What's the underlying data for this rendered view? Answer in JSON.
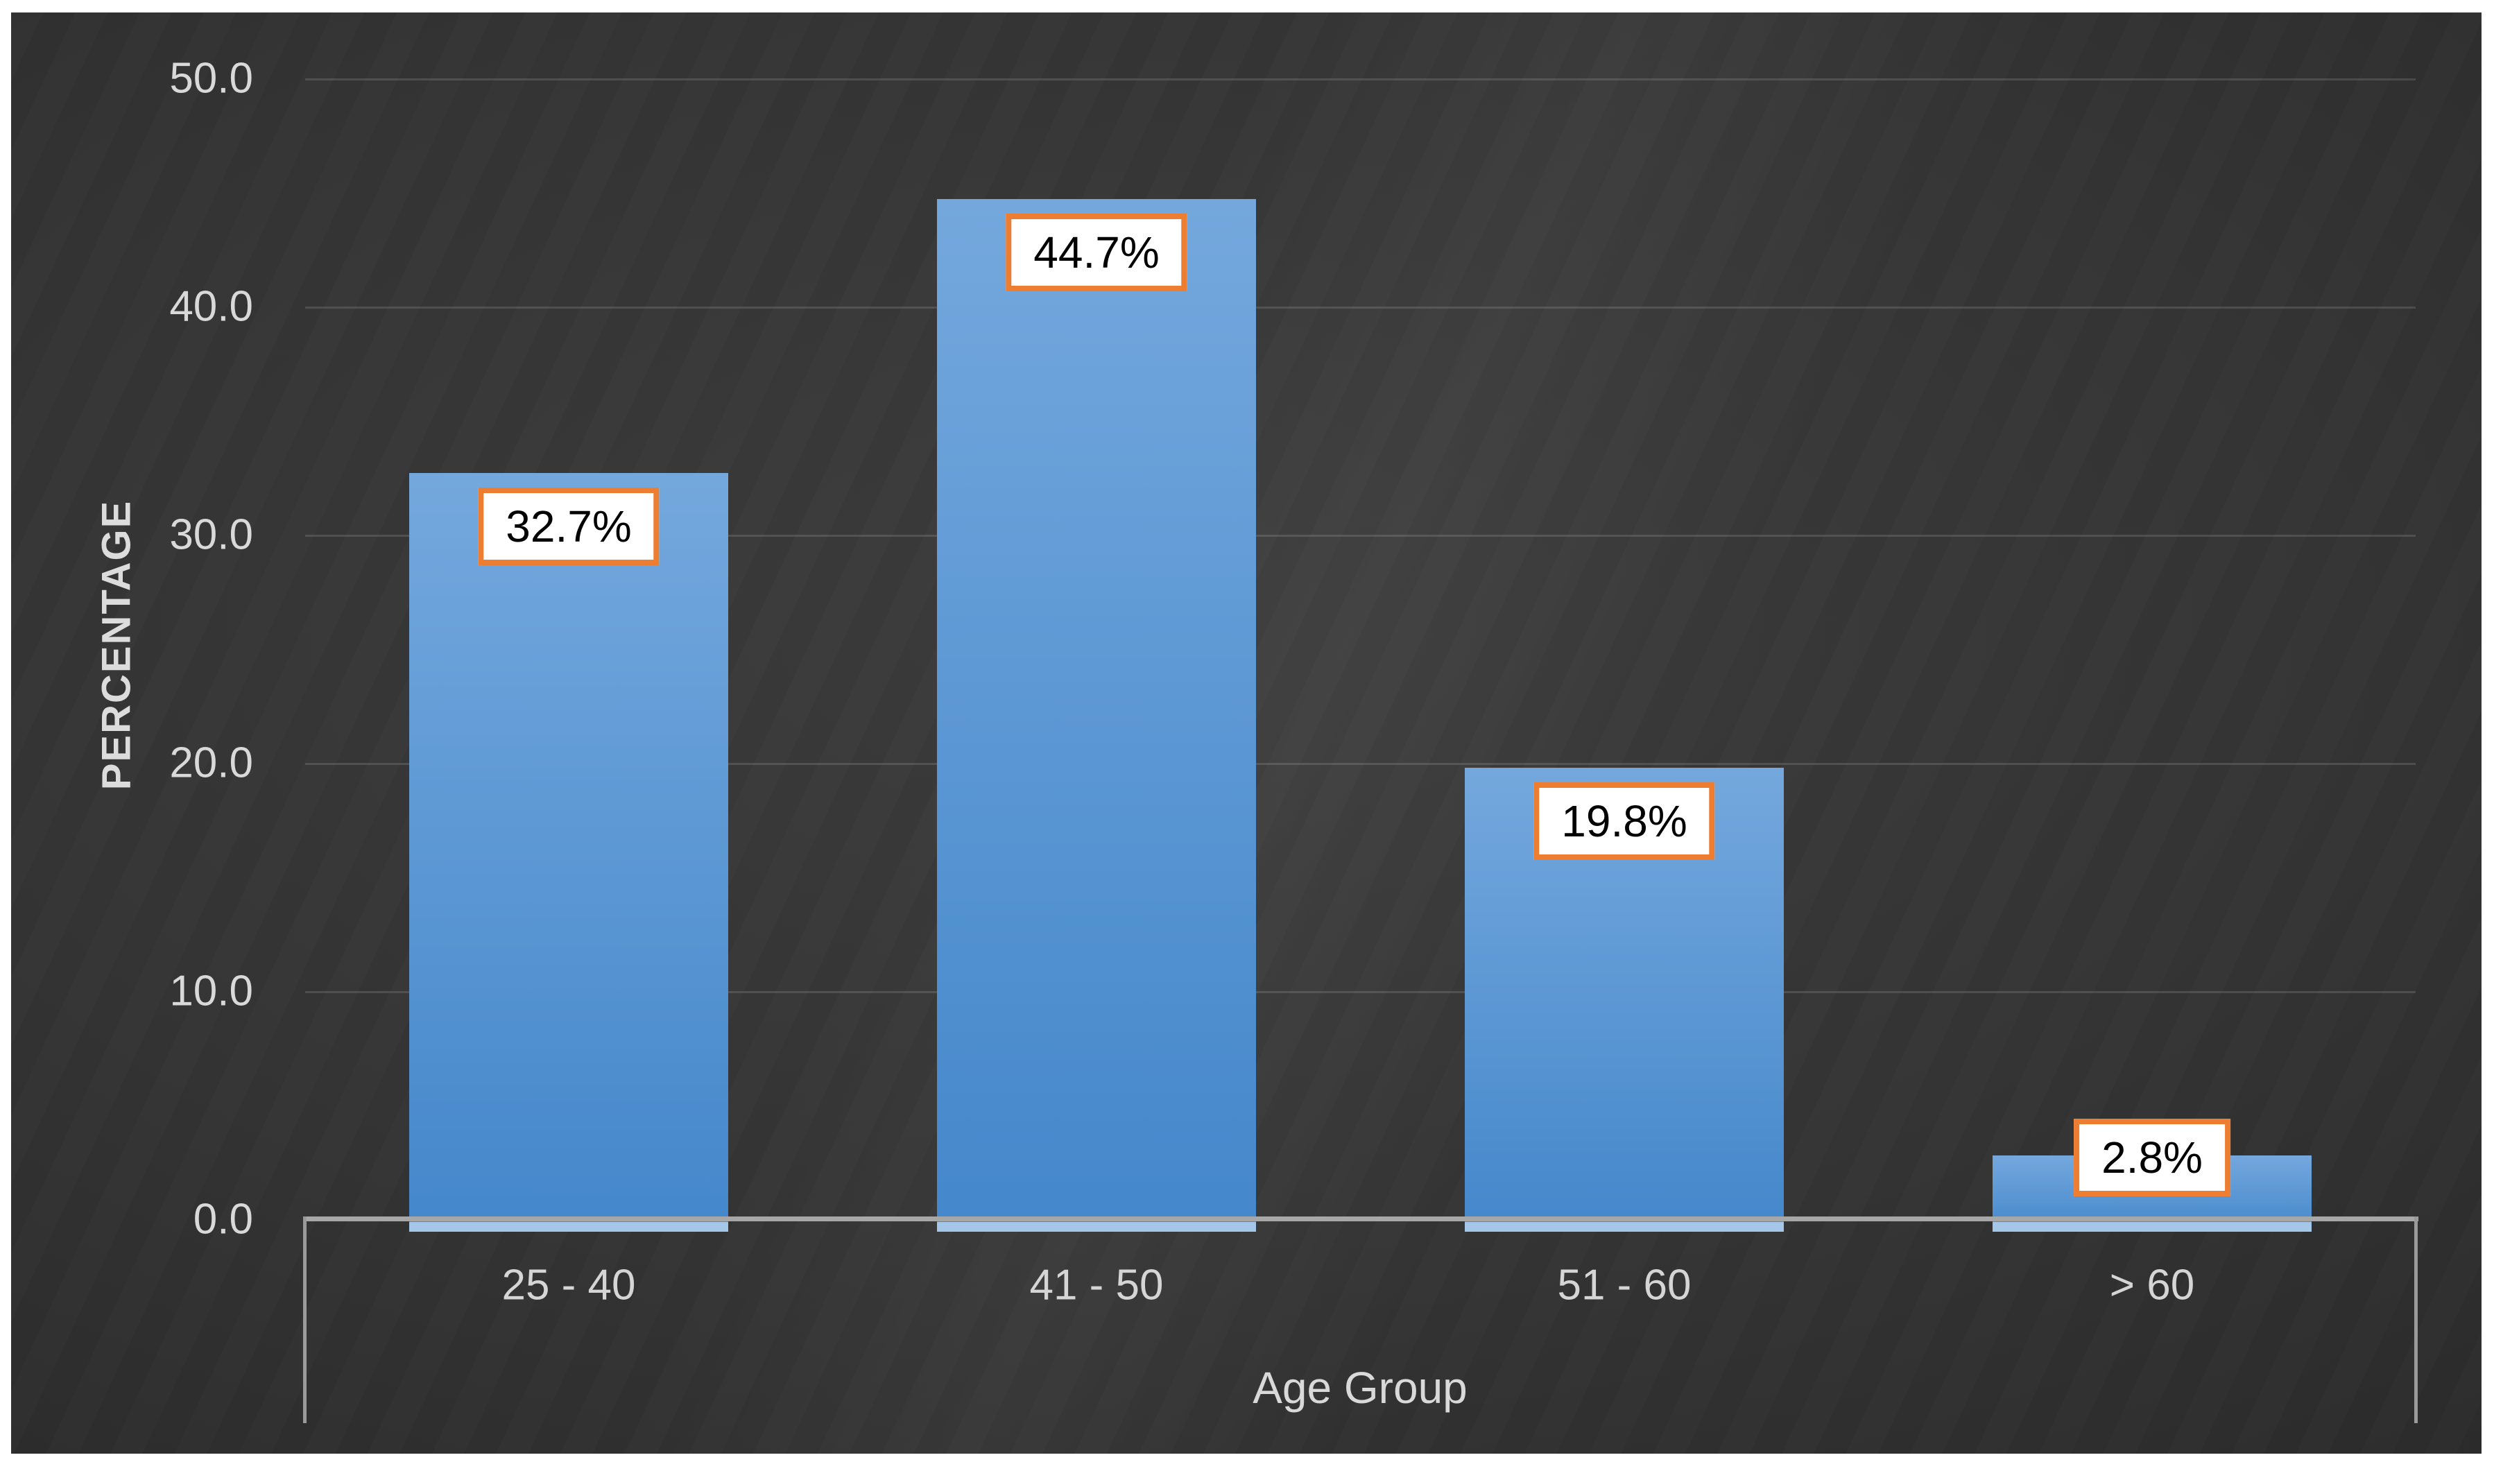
{
  "chart_data": {
    "type": "bar",
    "categories": [
      "25 - 40",
      "41 - 50",
      "51 - 60",
      "> 60"
    ],
    "values": [
      32.7,
      44.7,
      19.8,
      2.8
    ],
    "data_labels": [
      "32.7%",
      "44.7%",
      "19.8%",
      "2.8%"
    ],
    "title": "",
    "xlabel": "Age Group",
    "ylabel": "PERCENTAGE",
    "ylim": [
      0,
      50
    ],
    "ytick_step": 10,
    "yticks": [
      "0.0",
      "10.0",
      "20.0",
      "30.0",
      "40.0",
      "50.0"
    ],
    "grid": true,
    "legend": false,
    "colors": {
      "bar_top": "#74a8dd",
      "bar_bottom": "#4487cb",
      "bar_foot": "#a4c6e8",
      "data_label_border": "#ED7D31",
      "data_label_bg": "#ffffff",
      "data_label_text": "#000000",
      "axis_line": "#a7a7a7",
      "frame_line": "#9a9a9a",
      "gridline": "rgba(255,255,255,0.13)",
      "tick_text": "#d9d9d9",
      "category_text": "#d5d5d5",
      "axis_title_text": "#dcdcdc"
    }
  }
}
